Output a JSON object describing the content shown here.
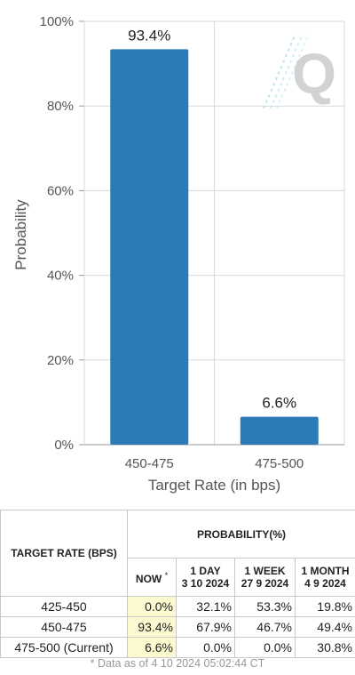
{
  "chart_data": {
    "type": "bar",
    "categories": [
      "450-475",
      "475-500"
    ],
    "values": [
      93.4,
      6.6
    ],
    "value_labels": [
      "93.4%",
      "6.6%"
    ],
    "xlabel": "Target Rate (in bps)",
    "ylabel": "Probability",
    "ylim": [
      0,
      100
    ],
    "yticks": [
      0,
      20,
      40,
      60,
      80,
      100
    ],
    "ytick_labels": [
      "0%",
      "20%",
      "40%",
      "60%",
      "80%",
      "100%"
    ],
    "grid": true,
    "bar_color": "#2c7bb6"
  },
  "table": {
    "target_rate_header": "TARGET RATE (BPS)",
    "probability_header": "PROBABILITY(%)",
    "now_label": "NOW",
    "now_marker": "*",
    "columns": [
      {
        "line1": "1 DAY",
        "line2": "3 10 2024"
      },
      {
        "line1": "1 WEEK",
        "line2": "27 9 2024"
      },
      {
        "line1": "1 MONTH",
        "line2": "4 9 2024"
      }
    ],
    "rows": [
      {
        "rate": "425-450",
        "now": "0.0%",
        "day": "32.1%",
        "week": "53.3%",
        "month": "19.8%"
      },
      {
        "rate": "450-475",
        "now": "93.4%",
        "day": "67.9%",
        "week": "46.7%",
        "month": "49.4%"
      },
      {
        "rate": "475-500 (Current)",
        "now": "6.6%",
        "day": "0.0%",
        "week": "0.0%",
        "month": "30.8%"
      }
    ],
    "highlight_color": "#fbf9d0"
  },
  "footnote": "* Data as of 4 10 2024 05:02:44 CT"
}
